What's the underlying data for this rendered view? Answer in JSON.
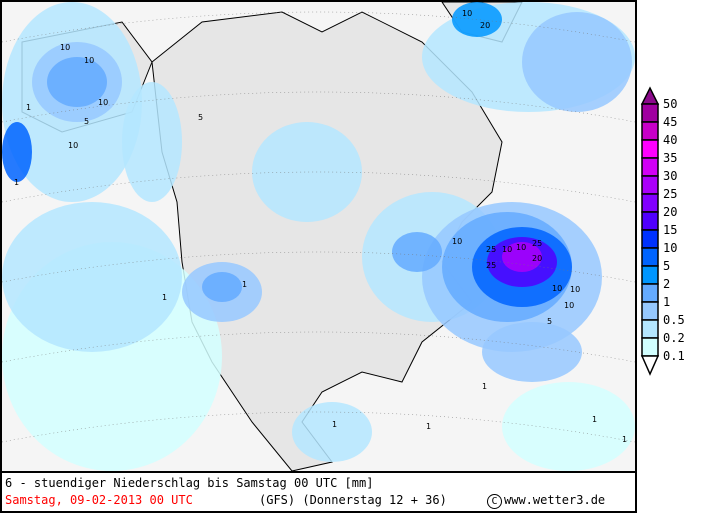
{
  "footer": {
    "title": "6 - stuendiger Niederschlag bis Samstag 00 UTC [mm]",
    "date": "Samstag, 09-02-2013  00 UTC",
    "model": "(GFS)  (Donnerstag 12 + 36)",
    "copyright_symbol": "C",
    "site": "www.wetter3.de"
  },
  "legend": {
    "labels": [
      "50",
      "45",
      "40",
      "35",
      "30",
      "25",
      "20",
      "15",
      "10",
      "5",
      "2",
      "1",
      "0.5",
      "0.2",
      "0.1"
    ],
    "colors": [
      "#8c0a8c",
      "#a000a0",
      "#c800c8",
      "#ff00ff",
      "#d200f5",
      "#aa00fa",
      "#8200ff",
      "#5000ff",
      "#0032ff",
      "#0064ff",
      "#0096ff",
      "#64aaff",
      "#96c8ff",
      "#b4e6ff",
      "#d2ffff",
      "#ffffff"
    ]
  },
  "map": {
    "land_color": "#e6e6e6",
    "ocean_color": "#f5f5f5",
    "contour_labels": [
      "10",
      "20",
      "10",
      "5",
      "10",
      "1",
      "10",
      "10",
      "5",
      "1",
      "10",
      "25",
      "10",
      "10",
      "25",
      "25",
      "20",
      "10",
      "5",
      "10",
      "10",
      "1",
      "1",
      "1",
      "1",
      "1",
      "1",
      "1"
    ]
  }
}
